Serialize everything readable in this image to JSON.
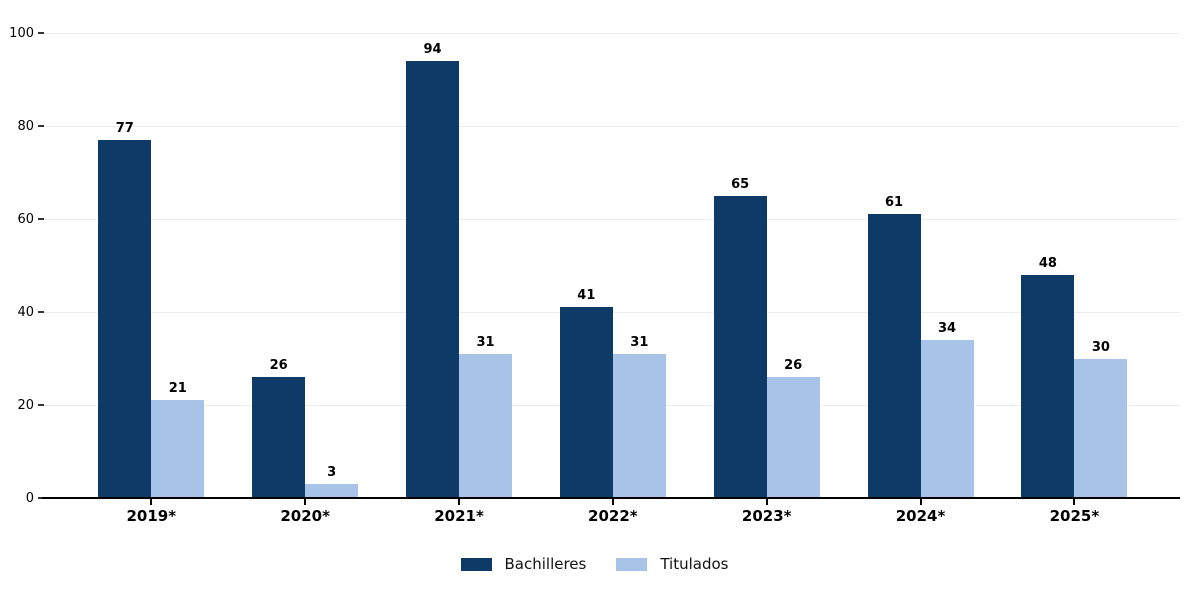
{
  "chart_data": {
    "type": "bar",
    "categories": [
      "2019*",
      "2020*",
      "2021*",
      "2022*",
      "2023*",
      "2024*",
      "2025*"
    ],
    "series": [
      {
        "name": "Bachilleres",
        "color": "#0d3a66",
        "values": [
          77,
          26,
          94,
          41,
          65,
          61,
          48
        ]
      },
      {
        "name": "Titulados",
        "color": "#a7c4e8",
        "values": [
          21,
          3,
          31,
          31,
          26,
          34,
          30
        ]
      }
    ],
    "title": "",
    "xlabel": "",
    "ylabel": "",
    "ylim": [
      0,
      100
    ],
    "yticks": [
      0,
      20,
      40,
      60,
      80,
      100
    ],
    "grid": true,
    "bar_value_labels": true,
    "legend_position": "bottom-center"
  },
  "colors": {
    "background": "#ffffff",
    "gridline": "#ececec",
    "axis": "#000000",
    "label_text": "#000000"
  }
}
